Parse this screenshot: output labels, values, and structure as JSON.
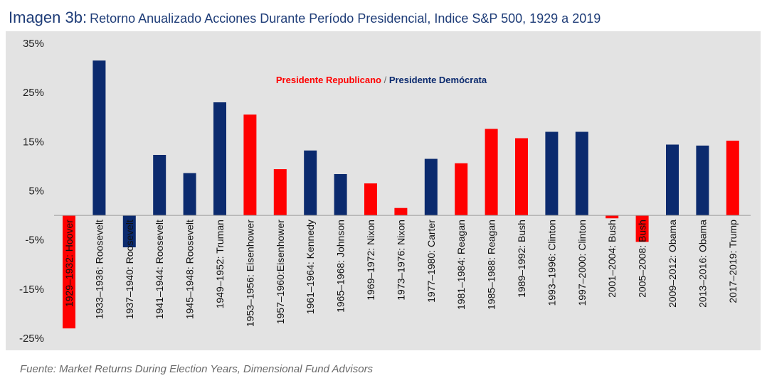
{
  "title": {
    "prefix": "Imagen 3b:",
    "main": "Retorno Anualizado Acciones Durante Período Presidencial, Indice S&P 500, 1929 a 2019"
  },
  "source": "Fuente: Market Returns During Election Years, Dimensional Fund Advisors",
  "colors": {
    "republican": "#ff0000",
    "democrat": "#0b2a6e",
    "title": "#1f3d78"
  },
  "chart_data": {
    "type": "bar",
    "ylim": [
      -25,
      35
    ],
    "yticks": [
      35,
      25,
      15,
      5,
      -5,
      -15,
      -25
    ],
    "ytick_labels": [
      "35%",
      "25%",
      "15%",
      "5%",
      "-5%",
      "-15%",
      "-25%"
    ],
    "grid": false,
    "legend": {
      "position": "top-center",
      "republican_label": "Presidente Republicano",
      "separator": " / ",
      "democrat_label": "Presidente Demócrata"
    },
    "categories": [
      "1929–1932: Hoover",
      "1933–1936: Roosevelt",
      "1937–1940: Roosevelt",
      "1941–1944: Roosevelt",
      "1945–1948: Roosevelt",
      "1949–1952: Truman",
      "1953–1956: Eisenhower",
      "1957–1960:Eisenhower",
      "1961–1964: Kennedy",
      "1965–1968: Johnson",
      "1969–1972: Nixon",
      "1973–1976: Nixon",
      "1977–1980: Carter",
      "1981–1984: Reagan",
      "1985–1988: Reagan",
      "1989–1992: Bush",
      "1993–1996: Clinton",
      "1997–2000: Clinton",
      "2001–2004: Bush",
      "2005–2008: Bush",
      "2009–2012: Obama",
      "2013–2016: Obama",
      "2017–2019: Trump"
    ],
    "values": [
      -23,
      31.5,
      -6.5,
      12.3,
      8.6,
      23,
      20.5,
      9.4,
      13.2,
      8.4,
      6.5,
      1.5,
      11.5,
      10.6,
      17.6,
      15.7,
      17,
      17,
      -0.6,
      -5.4,
      14.4,
      14.2,
      15.2
    ],
    "party": [
      "R",
      "D",
      "D",
      "D",
      "D",
      "D",
      "R",
      "R",
      "D",
      "D",
      "R",
      "R",
      "D",
      "R",
      "R",
      "R",
      "D",
      "D",
      "R",
      "R",
      "D",
      "D",
      "R"
    ]
  }
}
